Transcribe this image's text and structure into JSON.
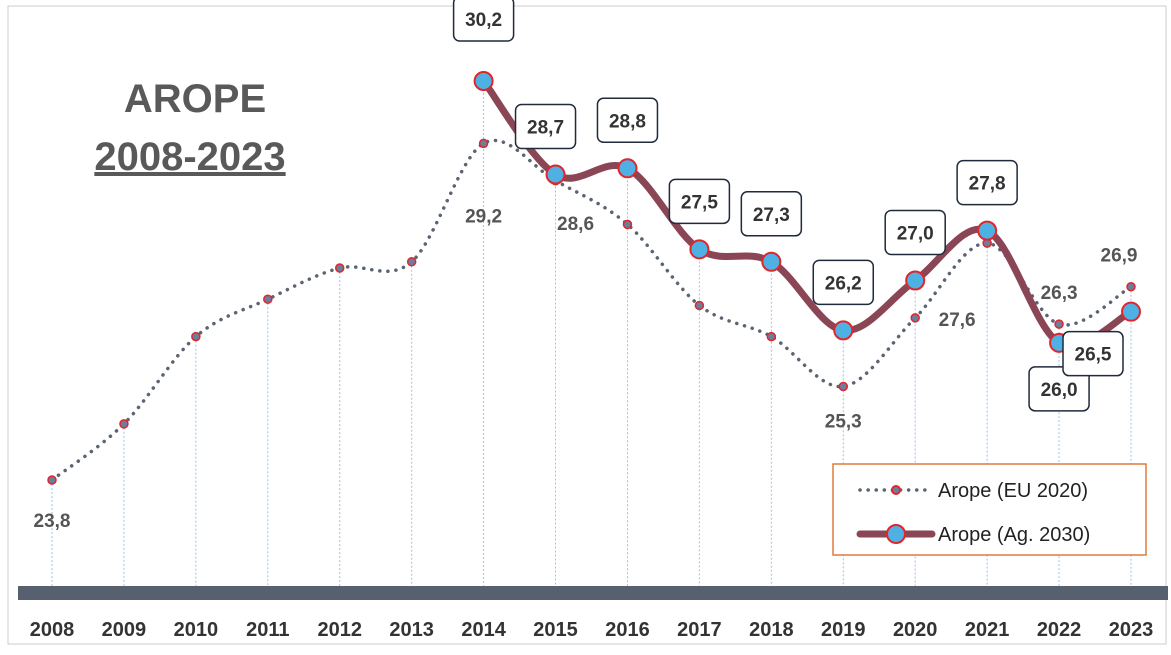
{
  "chart_data": {
    "type": "line",
    "title": "AROPE",
    "subtitle": "2008-2023",
    "categories": [
      "2008",
      "2009",
      "2010",
      "2011",
      "2012",
      "2013",
      "2014",
      "2015",
      "2016",
      "2017",
      "2018",
      "2019",
      "2020",
      "2021",
      "2022",
      "2023"
    ],
    "series": [
      {
        "name": "Arope (EU 2020)",
        "color": "#5b6472",
        "style": "dotted",
        "values": [
          23.8,
          24.7,
          26.1,
          26.7,
          27.2,
          27.3,
          29.2,
          28.6,
          27.9,
          26.6,
          26.1,
          25.3,
          26.4,
          27.6,
          26.3,
          26.9
        ],
        "value_labels": [
          "23,8",
          null,
          null,
          null,
          null,
          null,
          "29,2",
          "28,6",
          null,
          null,
          null,
          "25,3",
          null,
          "27,6",
          "26,3",
          "26,9"
        ]
      },
      {
        "name": "Arope (Ag. 2030)",
        "color": "#8a4655",
        "style": "solid",
        "values": [
          null,
          null,
          null,
          null,
          null,
          null,
          30.2,
          28.7,
          28.8,
          27.5,
          27.3,
          26.2,
          27.0,
          27.8,
          26.0,
          26.5
        ],
        "value_labels": [
          null,
          null,
          null,
          null,
          null,
          null,
          "30,2",
          "28,7",
          "28,8",
          "27,5",
          "27,3",
          "26,2",
          "27,0",
          "27,8",
          "26,0",
          "26,5"
        ]
      }
    ],
    "legend": "lower right"
  }
}
